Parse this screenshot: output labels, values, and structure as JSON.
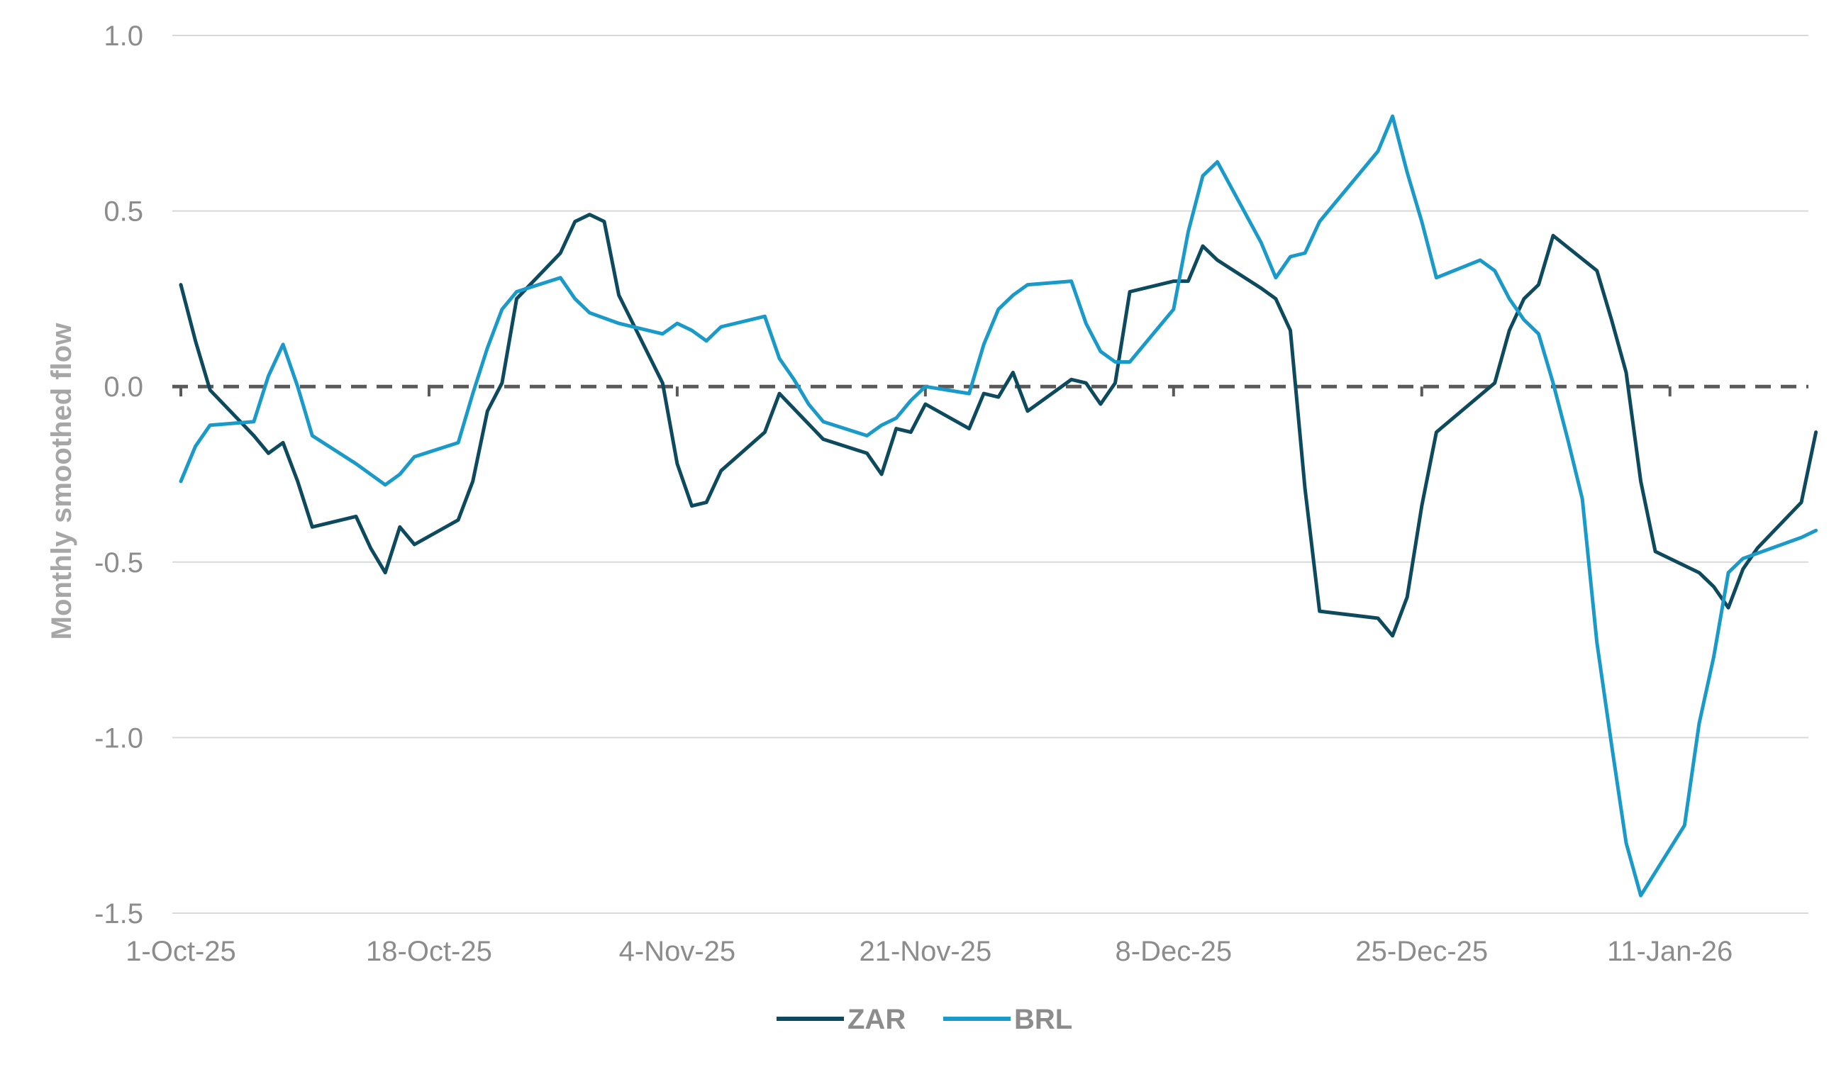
{
  "chart_data": {
    "type": "line",
    "ylabel": "Monthly smoothed flow",
    "xlabel": "",
    "ylim": [
      -1.5,
      1.0
    ],
    "yticks": [
      1.0,
      0.5,
      0.0,
      -0.5,
      -1.0,
      -1.5
    ],
    "ytick_labels": [
      "1.0",
      "0.5",
      "0.0",
      "-0.5",
      "-1.0",
      "-1.5"
    ],
    "xlim": [
      "2025-10-01",
      "2026-01-20"
    ],
    "xtick_labels": [
      "1-Oct-25",
      "18-Oct-25",
      "4-Nov-25",
      "21-Nov-25",
      "8-Dec-25",
      "25-Dec-25",
      "11-Jan-26"
    ],
    "xtick_dates": [
      "2025-10-01",
      "2025-10-18",
      "2025-11-04",
      "2025-11-21",
      "2025-12-08",
      "2025-12-25",
      "2026-01-11"
    ],
    "zero_line": "dashed",
    "grid": "horizontal",
    "legend_position": "bottom",
    "series": [
      {
        "name": "ZAR",
        "color": "#0d4a5e",
        "points": [
          [
            "2025-10-01",
            0.29
          ],
          [
            "2025-10-02",
            0.13
          ],
          [
            "2025-10-03",
            -0.01
          ],
          [
            "2025-10-06",
            -0.14
          ],
          [
            "2025-10-07",
            -0.19
          ],
          [
            "2025-10-08",
            -0.16
          ],
          [
            "2025-10-09",
            -0.27
          ],
          [
            "2025-10-10",
            -0.4
          ],
          [
            "2025-10-13",
            -0.37
          ],
          [
            "2025-10-14",
            -0.46
          ],
          [
            "2025-10-15",
            -0.53
          ],
          [
            "2025-10-16",
            -0.4
          ],
          [
            "2025-10-17",
            -0.45
          ],
          [
            "2025-10-20",
            -0.38
          ],
          [
            "2025-10-21",
            -0.27
          ],
          [
            "2025-10-22",
            -0.07
          ],
          [
            "2025-10-23",
            0.01
          ],
          [
            "2025-10-24",
            0.25
          ],
          [
            "2025-10-27",
            0.38
          ],
          [
            "2025-10-28",
            0.47
          ],
          [
            "2025-10-29",
            0.49
          ],
          [
            "2025-10-30",
            0.47
          ],
          [
            "2025-10-31",
            0.26
          ],
          [
            "2025-11-03",
            0.01
          ],
          [
            "2025-11-04",
            -0.22
          ],
          [
            "2025-11-05",
            -0.34
          ],
          [
            "2025-11-06",
            -0.33
          ],
          [
            "2025-11-07",
            -0.24
          ],
          [
            "2025-11-10",
            -0.13
          ],
          [
            "2025-11-11",
            -0.02
          ],
          [
            "2025-11-14",
            -0.15
          ],
          [
            "2025-11-17",
            -0.19
          ],
          [
            "2025-11-18",
            -0.25
          ],
          [
            "2025-11-19",
            -0.12
          ],
          [
            "2025-11-20",
            -0.13
          ],
          [
            "2025-11-21",
            -0.05
          ],
          [
            "2025-11-24",
            -0.12
          ],
          [
            "2025-11-25",
            -0.02
          ],
          [
            "2025-11-26",
            -0.03
          ],
          [
            "2025-11-27",
            0.04
          ],
          [
            "2025-11-28",
            -0.07
          ],
          [
            "2025-12-01",
            0.02
          ],
          [
            "2025-12-02",
            0.01
          ],
          [
            "2025-12-03",
            -0.05
          ],
          [
            "2025-12-04",
            0.01
          ],
          [
            "2025-12-05",
            0.27
          ],
          [
            "2025-12-08",
            0.3
          ],
          [
            "2025-12-09",
            0.3
          ],
          [
            "2025-12-10",
            0.4
          ],
          [
            "2025-12-11",
            0.36
          ],
          [
            "2025-12-14",
            0.28
          ],
          [
            "2025-12-15",
            0.25
          ],
          [
            "2025-12-16",
            0.16
          ],
          [
            "2025-12-17",
            -0.29
          ],
          [
            "2025-12-18",
            -0.64
          ],
          [
            "2025-12-22",
            -0.66
          ],
          [
            "2025-12-23",
            -0.71
          ],
          [
            "2025-12-24",
            -0.6
          ],
          [
            "2025-12-25",
            -0.34
          ],
          [
            "2025-12-26",
            -0.13
          ],
          [
            "2025-12-30",
            0.01
          ],
          [
            "2025-12-31",
            0.16
          ],
          [
            "2026-01-01",
            0.25
          ],
          [
            "2026-01-02",
            0.29
          ],
          [
            "2026-01-03",
            0.43
          ],
          [
            "2026-01-06",
            0.33
          ],
          [
            "2026-01-07",
            0.19
          ],
          [
            "2026-01-08",
            0.04
          ],
          [
            "2026-01-09",
            -0.27
          ],
          [
            "2026-01-10",
            -0.47
          ],
          [
            "2026-01-13",
            -0.53
          ],
          [
            "2026-01-14",
            -0.57
          ],
          [
            "2026-01-15",
            -0.63
          ],
          [
            "2026-01-16",
            -0.52
          ],
          [
            "2026-01-17",
            -0.46
          ],
          [
            "2026-01-20",
            -0.33
          ],
          [
            "2026-01-21",
            -0.13
          ]
        ]
      },
      {
        "name": "BRL",
        "color": "#1a9ac9",
        "points": [
          [
            "2025-10-01",
            -0.27
          ],
          [
            "2025-10-02",
            -0.17
          ],
          [
            "2025-10-03",
            -0.11
          ],
          [
            "2025-10-06",
            -0.1
          ],
          [
            "2025-10-07",
            0.03
          ],
          [
            "2025-10-08",
            0.12
          ],
          [
            "2025-10-09",
            0.0
          ],
          [
            "2025-10-10",
            -0.14
          ],
          [
            "2025-10-13",
            -0.22
          ],
          [
            "2025-10-14",
            -0.25
          ],
          [
            "2025-10-15",
            -0.28
          ],
          [
            "2025-10-16",
            -0.25
          ],
          [
            "2025-10-17",
            -0.2
          ],
          [
            "2025-10-20",
            -0.16
          ],
          [
            "2025-10-21",
            -0.02
          ],
          [
            "2025-10-22",
            0.11
          ],
          [
            "2025-10-23",
            0.22
          ],
          [
            "2025-10-24",
            0.27
          ],
          [
            "2025-10-27",
            0.31
          ],
          [
            "2025-10-28",
            0.25
          ],
          [
            "2025-10-29",
            0.21
          ],
          [
            "2025-10-31",
            0.18
          ],
          [
            "2025-11-03",
            0.15
          ],
          [
            "2025-11-04",
            0.18
          ],
          [
            "2025-11-05",
            0.16
          ],
          [
            "2025-11-06",
            0.13
          ],
          [
            "2025-11-07",
            0.17
          ],
          [
            "2025-11-10",
            0.2
          ],
          [
            "2025-11-11",
            0.08
          ],
          [
            "2025-11-12",
            0.02
          ],
          [
            "2025-11-13",
            -0.05
          ],
          [
            "2025-11-14",
            -0.1
          ],
          [
            "2025-11-17",
            -0.14
          ],
          [
            "2025-11-18",
            -0.11
          ],
          [
            "2025-11-19",
            -0.09
          ],
          [
            "2025-11-20",
            -0.04
          ],
          [
            "2025-11-21",
            0.0
          ],
          [
            "2025-11-24",
            -0.02
          ],
          [
            "2025-11-25",
            0.12
          ],
          [
            "2025-11-26",
            0.22
          ],
          [
            "2025-11-27",
            0.26
          ],
          [
            "2025-11-28",
            0.29
          ],
          [
            "2025-12-01",
            0.3
          ],
          [
            "2025-12-02",
            0.18
          ],
          [
            "2025-12-03",
            0.1
          ],
          [
            "2025-12-04",
            0.07
          ],
          [
            "2025-12-05",
            0.07
          ],
          [
            "2025-12-08",
            0.22
          ],
          [
            "2025-12-09",
            0.44
          ],
          [
            "2025-12-10",
            0.6
          ],
          [
            "2025-12-11",
            0.64
          ],
          [
            "2025-12-14",
            0.41
          ],
          [
            "2025-12-15",
            0.31
          ],
          [
            "2025-12-16",
            0.37
          ],
          [
            "2025-12-17",
            0.38
          ],
          [
            "2025-12-18",
            0.47
          ],
          [
            "2025-12-22",
            0.67
          ],
          [
            "2025-12-23",
            0.77
          ],
          [
            "2025-12-24",
            0.61
          ],
          [
            "2025-12-25",
            0.47
          ],
          [
            "2025-12-26",
            0.31
          ],
          [
            "2025-12-29",
            0.36
          ],
          [
            "2025-12-30",
            0.33
          ],
          [
            "2025-12-31",
            0.25
          ],
          [
            "2026-01-01",
            0.19
          ],
          [
            "2026-01-02",
            0.15
          ],
          [
            "2026-01-03",
            0.01
          ],
          [
            "2026-01-04",
            -0.15
          ],
          [
            "2026-01-05",
            -0.32
          ],
          [
            "2026-01-06",
            -0.73
          ],
          [
            "2026-01-07",
            -1.02
          ],
          [
            "2026-01-08",
            -1.3
          ],
          [
            "2026-01-09",
            -1.45
          ],
          [
            "2026-01-12",
            -1.25
          ],
          [
            "2026-01-13",
            -0.96
          ],
          [
            "2026-01-14",
            -0.77
          ],
          [
            "2026-01-15",
            -0.53
          ],
          [
            "2026-01-16",
            -0.49
          ],
          [
            "2026-01-20",
            -0.43
          ],
          [
            "2026-01-21",
            -0.41
          ]
        ]
      }
    ]
  }
}
